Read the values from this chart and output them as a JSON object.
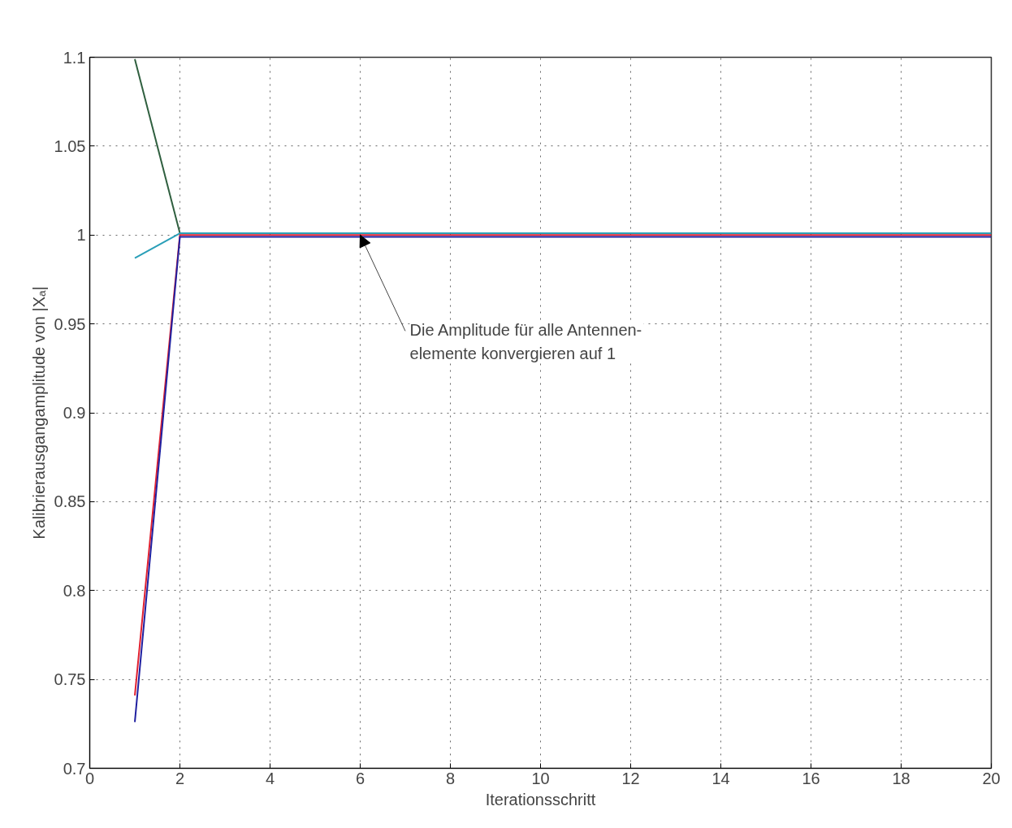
{
  "chart_data": {
    "type": "line",
    "xlabel": "Iterationsschritt",
    "ylabel": "Kalibrierausgangamplitude von |Xₐ|",
    "x": [
      1,
      2,
      3,
      4,
      5,
      6,
      7,
      8,
      9,
      10,
      11,
      12,
      13,
      14,
      15,
      16,
      17,
      18,
      19,
      20
    ],
    "series": [
      {
        "color": "#2f5f3f",
        "values": [
          1.099,
          1.001,
          null,
          null,
          null,
          null,
          null,
          null,
          null,
          null,
          null,
          null,
          null,
          null,
          null,
          null,
          null,
          null,
          null,
          null
        ]
      },
      {
        "color": "#2a9fb8",
        "values": [
          0.987,
          1.001,
          1.001,
          1.001,
          1.001,
          1.001,
          1.001,
          1.001,
          1.001,
          1.001,
          1.001,
          1.001,
          1.001,
          1.001,
          1.001,
          1.001,
          1.001,
          1.001,
          1.001,
          1.001
        ]
      },
      {
        "color": "#e02030",
        "values": [
          0.741,
          1.0,
          1.0,
          1.0,
          1.0,
          1.0,
          1.0,
          1.0,
          1.0,
          1.0,
          1.0,
          1.0,
          1.0,
          1.0,
          1.0,
          1.0,
          1.0,
          1.0,
          1.0,
          1.0
        ]
      },
      {
        "color": "#2020a0",
        "values": [
          0.726,
          0.999,
          0.999,
          0.999,
          0.999,
          0.999,
          0.999,
          0.999,
          0.999,
          0.999,
          0.999,
          0.999,
          0.999,
          0.999,
          0.999,
          0.999,
          0.999,
          0.999,
          0.999,
          0.999
        ]
      }
    ],
    "xlim": [
      0,
      20
    ],
    "xticks": [
      0,
      2,
      4,
      6,
      8,
      10,
      12,
      14,
      16,
      18,
      20
    ],
    "ylim": [
      0.7,
      1.1
    ],
    "yticks": [
      0.7,
      0.75,
      0.8,
      0.85,
      0.9,
      0.95,
      1,
      1.05,
      1.1
    ],
    "grid": true,
    "line_style": "solid",
    "marker": "none",
    "annotations": [
      {
        "text": "Die Amplitude für alle Antennen-\nelemente konvergieren auf 1",
        "x": 6,
        "y": 1.0
      }
    ]
  }
}
